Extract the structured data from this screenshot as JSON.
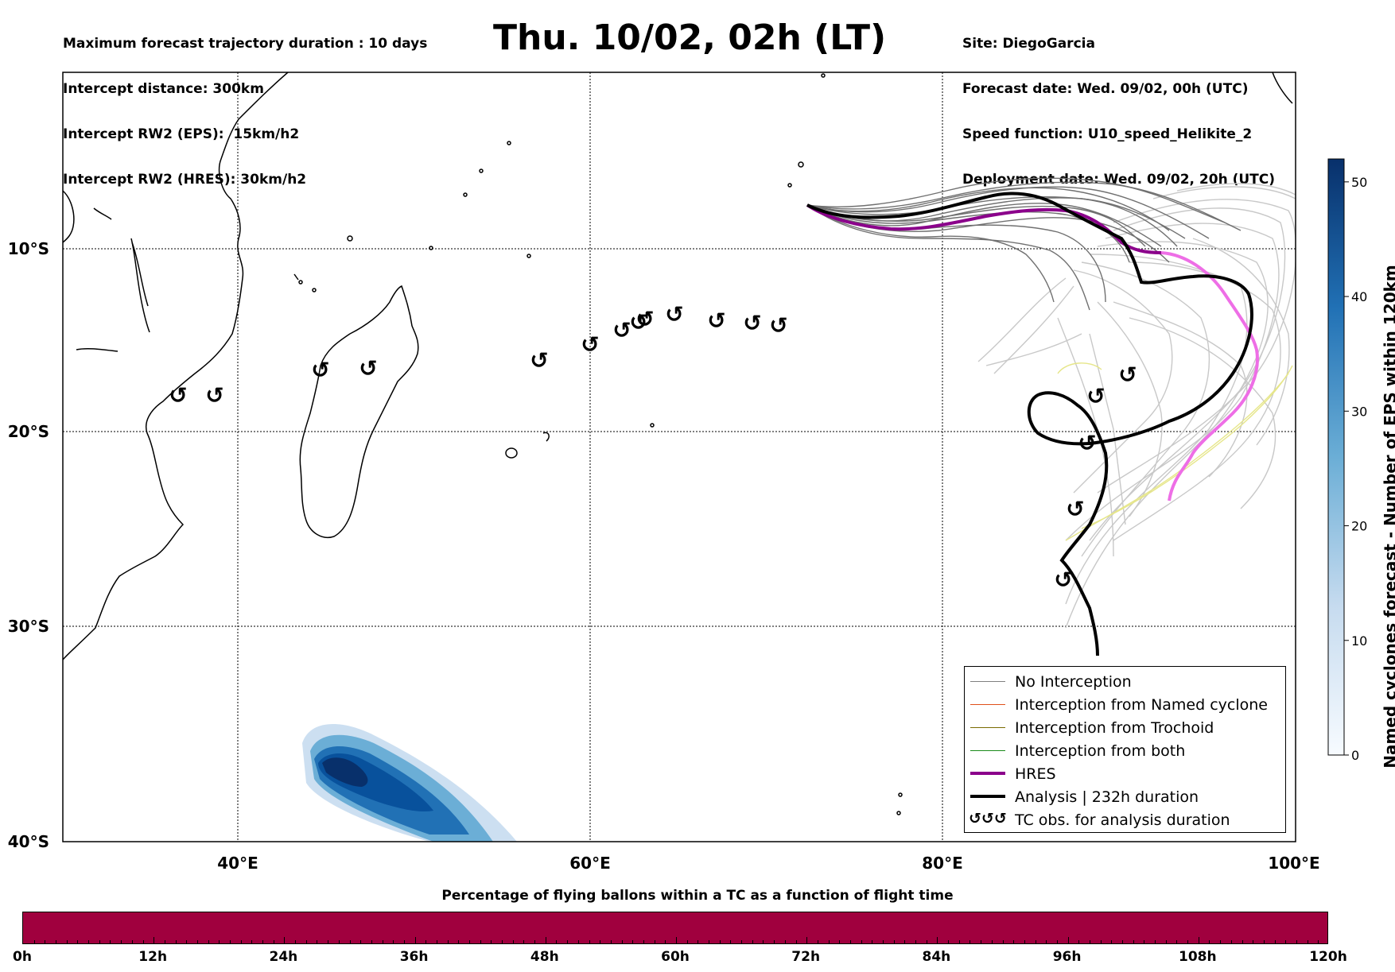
{
  "header_left": [
    "Maximum forecast trajectory duration : 10 days",
    "Intercept distance: 300km",
    "Intercept RW2 (EPS):  15km/h2",
    "Intercept RW2 (HRES): 30km/h2"
  ],
  "title": "Thu. 10/02, 02h (LT)",
  "header_right": [
    "Site: DiegoGarcia",
    "Forecast date: Wed. 09/02, 00h (UTC)",
    "Speed function: U10_speed_Helikite_2",
    "Deployment date: Wed. 09/02, 20h (UTC)"
  ],
  "map": {
    "lon_ticks": [
      "40°E",
      "60°E",
      "80°E",
      "100°E"
    ],
    "lat_ticks": [
      "10°S",
      "20°S",
      "30°S",
      "40°S"
    ]
  },
  "legend": {
    "items": [
      {
        "label": "No Interception",
        "color": "#808080"
      },
      {
        "label": "Interception from Named cyclone",
        "color": "#e0501a"
      },
      {
        "label": "Interception from Trochoid",
        "color": "#7a6a00"
      },
      {
        "label": "Interception from both",
        "color": "#1a8a1a"
      },
      {
        "label": "HRES",
        "color": "#8b008b"
      },
      {
        "label": "Analysis | 232h duration",
        "color": "#000000"
      }
    ],
    "tc_label": "TC obs. for analysis duration",
    "tc_symbol": "↺↺↺"
  },
  "colorbar": {
    "title": "Named cyclones forecast - Number of EPS within 120km",
    "ticks": [
      "0",
      "10",
      "20",
      "30",
      "40",
      "50"
    ],
    "max": 52
  },
  "time_bar": {
    "title": "Percentage of flying ballons within a TC as a function of flight time",
    "ticks": [
      "0h",
      "12h",
      "24h",
      "36h",
      "48h",
      "60h",
      "72h",
      "84h",
      "96h",
      "108h",
      "120h"
    ],
    "color": "#a0003e"
  }
}
